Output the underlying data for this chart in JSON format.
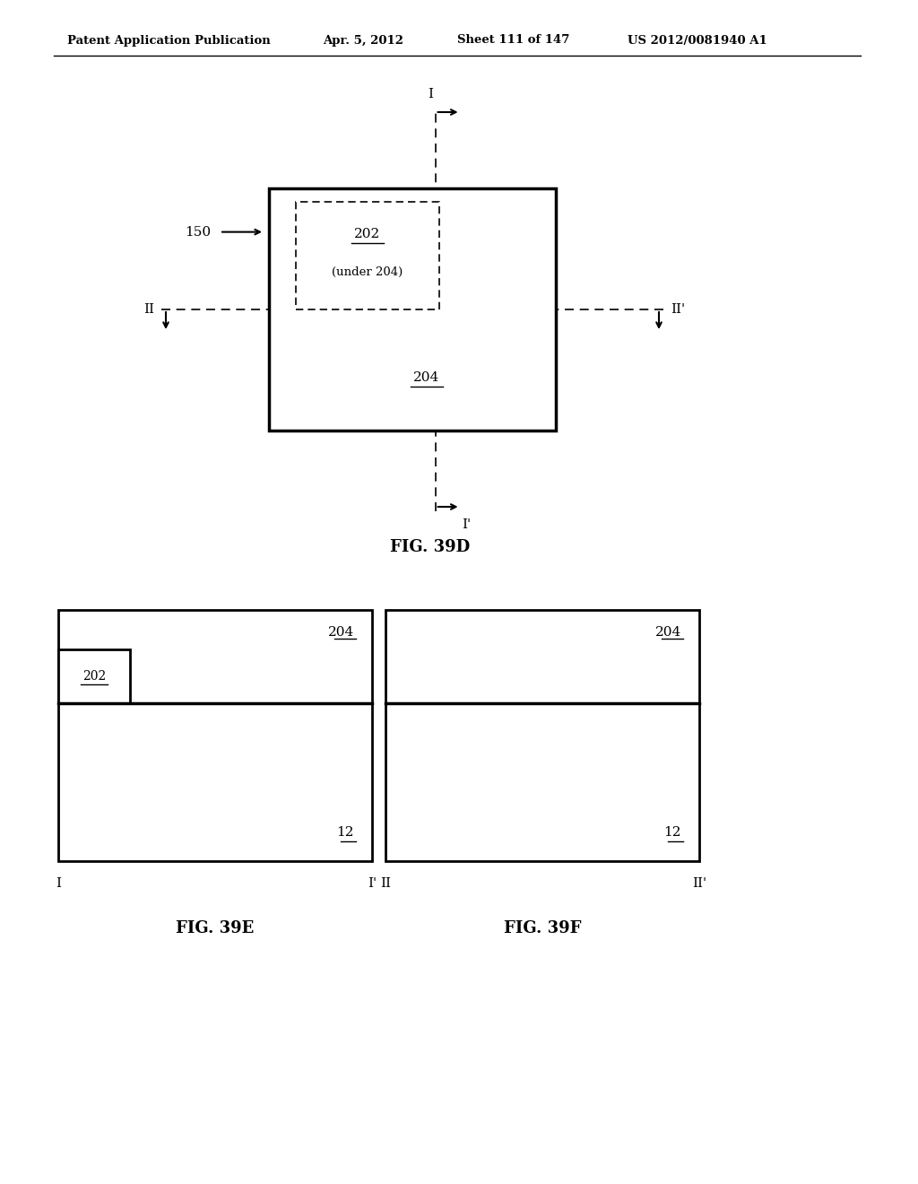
{
  "bg_color": "#ffffff",
  "header_left": "Patent Application Publication",
  "header_mid": "Apr. 5, 2012   Sheet 111 of 147   US 2012/0081940 A1",
  "fig39d_caption": "FIG. 39D",
  "fig39e_caption": "FIG. 39E",
  "fig39f_caption": "FIG. 39F",
  "label_150": "150",
  "label_202": "202",
  "label_202_sub": "(under 204)",
  "label_204": "204",
  "label_12": "12",
  "label_I": "I",
  "label_Iprime": "I'",
  "label_II": "II",
  "label_IIprime": "II'",
  "text_color": "#000000",
  "line_color": "#000000"
}
